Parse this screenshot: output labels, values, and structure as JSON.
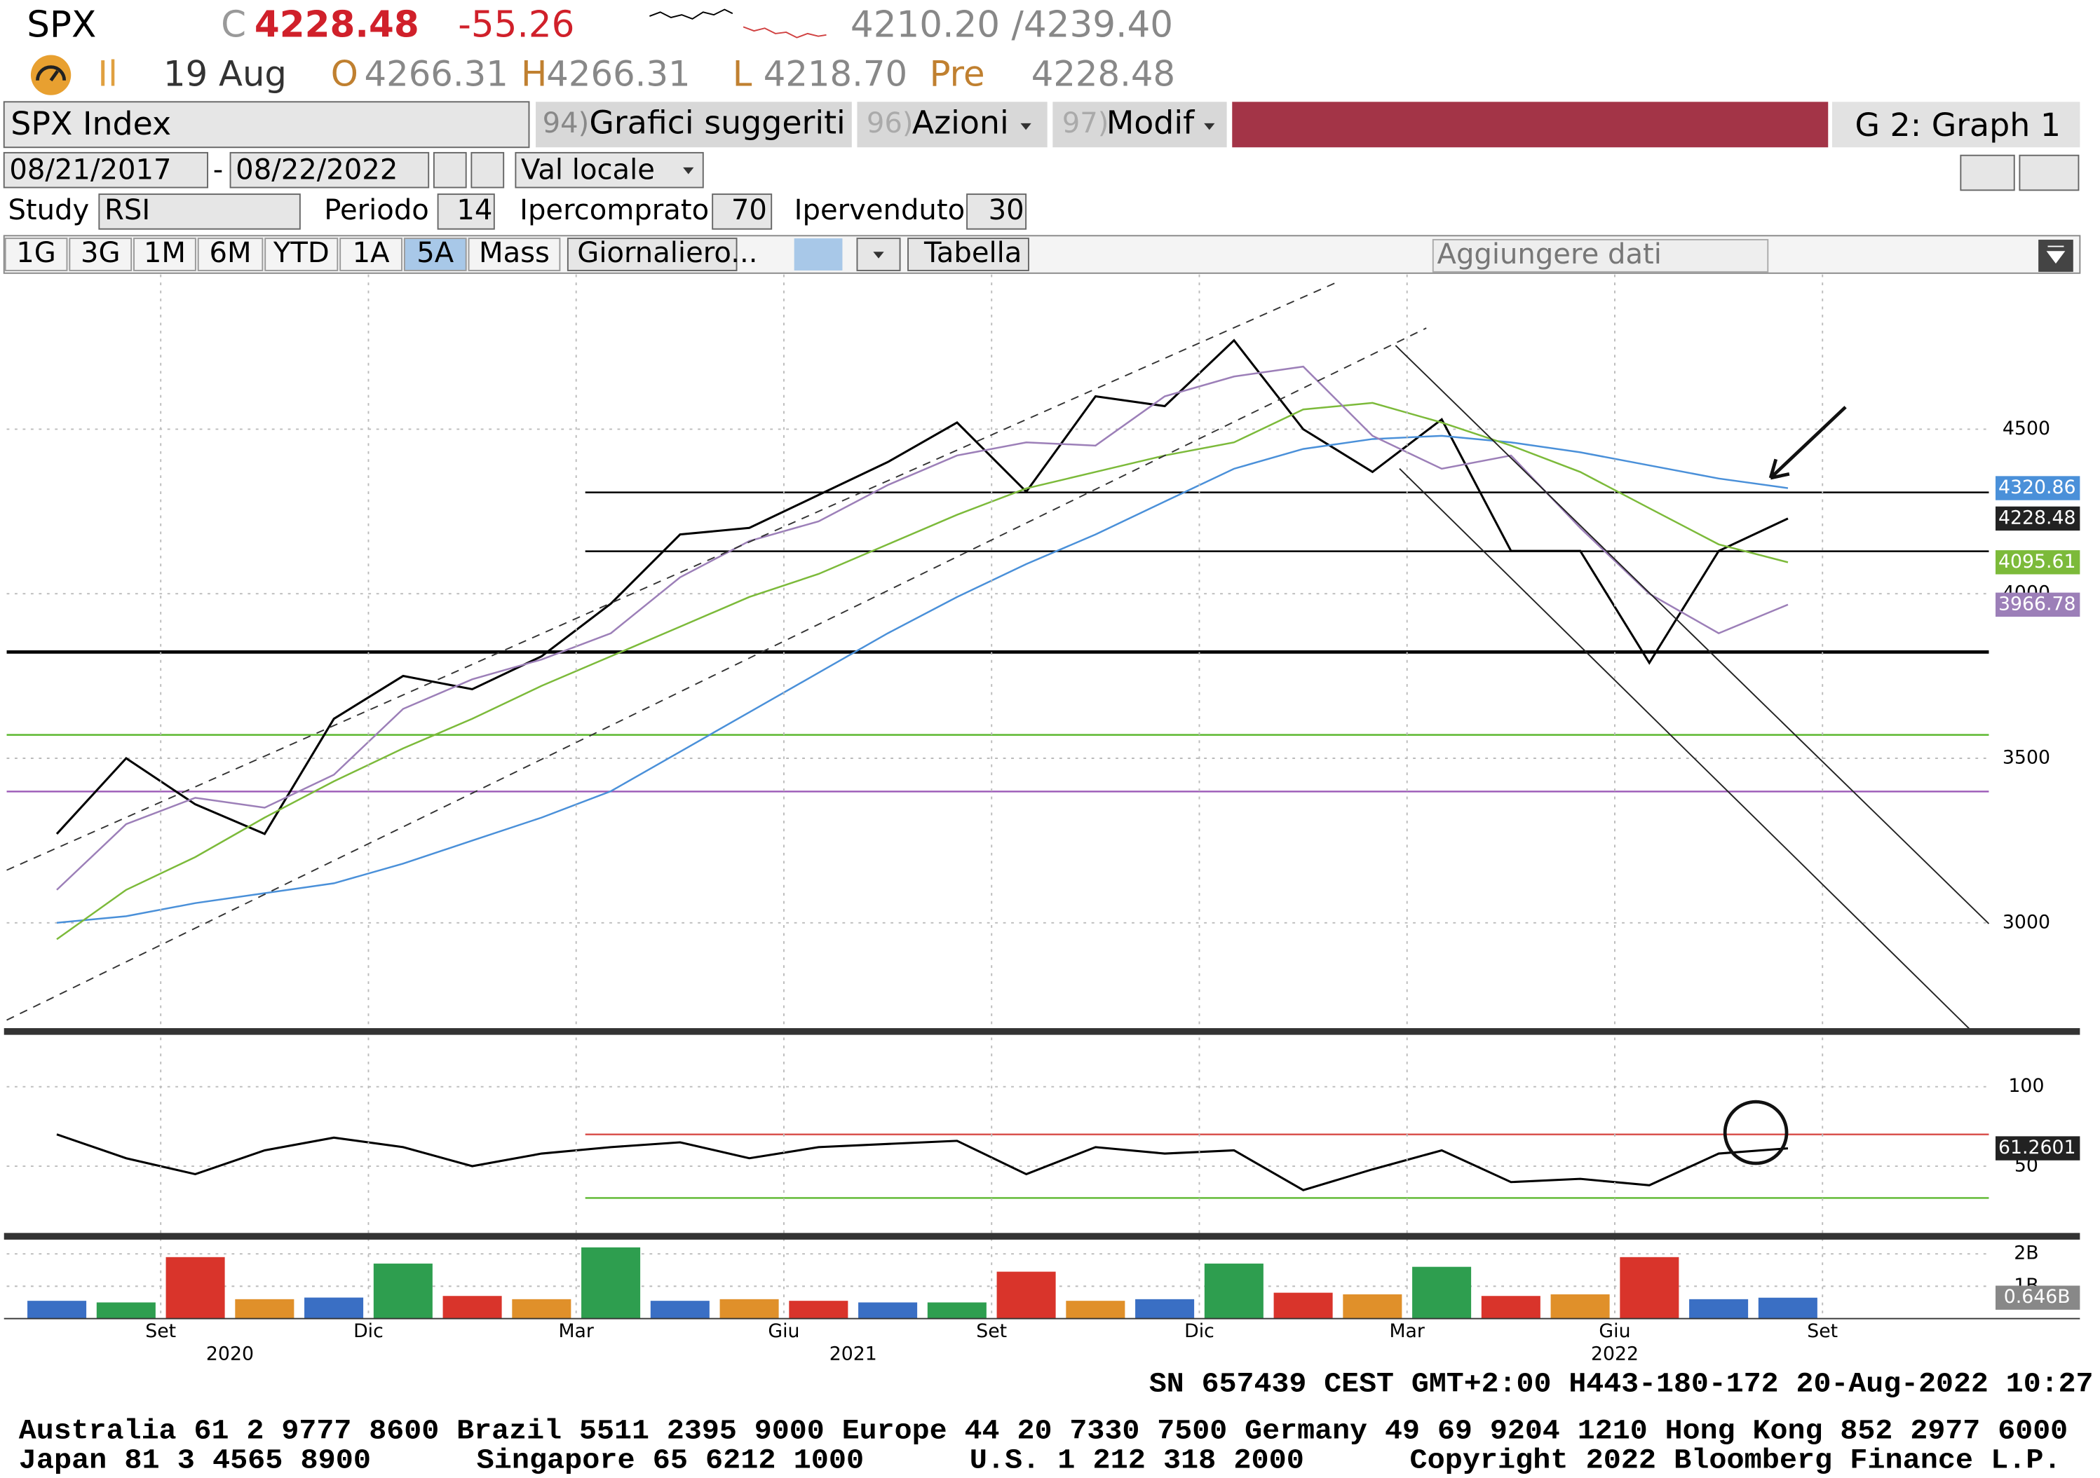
{
  "header": {
    "symbol": "SPX",
    "close_prefix": "C",
    "last": "4228.48",
    "change": "-55.26",
    "bid_ask": "4210.20 /4239.40",
    "session": "Il",
    "date": "19 Aug",
    "open_label": "O",
    "open": "4266.31",
    "high_label": "H",
    "high": "4266.31",
    "low_label": "L",
    "low": "4218.70",
    "pre_label": "Pre",
    "pre": "4228.48"
  },
  "toolbar": {
    "security": "SPX Index",
    "menu1_num": "94)",
    "menu1": "Grafici suggeriti",
    "menu2_num": "96)",
    "menu2": "Azioni",
    "menu3_num": "97)",
    "menu3": "Modif",
    "graph": "G 2: Graph 1",
    "date_from": "08/21/2017",
    "date_sep": "-",
    "date_to": "08/22/2022",
    "currency": "Val locale",
    "study_label": "Study",
    "study": "RSI",
    "period_label": "Periodo",
    "period": "14",
    "overbought_label": "Ipercomprato",
    "overbought": "70",
    "oversold_label": "Ipervenduto",
    "oversold": "30",
    "ranges": [
      "1G",
      "3G",
      "1M",
      "6M",
      "YTD",
      "1A",
      "5A",
      "Mass"
    ],
    "frequency": "Giornaliero...",
    "table": "Tabella",
    "add_data": "Aggiungere dati"
  },
  "chart_data": [
    {
      "type": "line",
      "x": [
        "2020-07",
        "2020-08",
        "2020-09",
        "2020-10",
        "2020-11",
        "2020-12",
        "2021-01",
        "2021-02",
        "2021-03",
        "2021-04",
        "2021-05",
        "2021-06",
        "2021-07",
        "2021-08",
        "2021-09",
        "2021-10",
        "2021-11",
        "2021-12",
        "2022-01",
        "2022-02",
        "2022-03",
        "2022-04",
        "2022-05",
        "2022-06",
        "2022-07",
        "2022-08"
      ],
      "series": [
        {
          "color": "#000000",
          "values": [
            3270,
            3500,
            3360,
            3270,
            3620,
            3750,
            3710,
            3810,
            3970,
            4180,
            4200,
            4300,
            4400,
            4520,
            4310,
            4600,
            4570,
            4770,
            4500,
            4370,
            4530,
            4130,
            4130,
            3790,
            4130,
            4228.48
          ]
        },
        {
          "color": "#4a90d9",
          "values": [
            3000,
            3020,
            3060,
            3090,
            3120,
            3180,
            3250,
            3320,
            3400,
            3520,
            3640,
            3760,
            3880,
            3990,
            4090,
            4180,
            4280,
            4380,
            4440,
            4470,
            4480,
            4460,
            4430,
            4390,
            4350,
            4320.86
          ]
        },
        {
          "color": "#7cba3a",
          "values": [
            2950,
            3100,
            3200,
            3320,
            3430,
            3530,
            3620,
            3720,
            3810,
            3900,
            3990,
            4060,
            4150,
            4240,
            4320,
            4370,
            4420,
            4460,
            4560,
            4580,
            4520,
            4450,
            4370,
            4260,
            4150,
            4095.61
          ]
        },
        {
          "color": "#9c7fb8",
          "values": [
            3100,
            3300,
            3380,
            3350,
            3450,
            3650,
            3740,
            3800,
            3880,
            4050,
            4160,
            4220,
            4330,
            4420,
            4460,
            4450,
            4600,
            4660,
            4690,
            4480,
            4380,
            4420,
            4200,
            4000,
            3880,
            3966.78
          ]
        }
      ],
      "ylim": [
        2680,
        4970
      ],
      "yticks": [
        3000,
        3500,
        4000,
        4500
      ],
      "grid": true,
      "levels": [
        {
          "value": 4308,
          "color": "#000000"
        },
        {
          "value": 4129,
          "color": "#000000"
        },
        {
          "value": 3823,
          "color": "#000000"
        },
        {
          "value": 3571,
          "color": "#5cb82e"
        },
        {
          "value": 3399,
          "color": "#9b59b6"
        }
      ]
    },
    {
      "type": "line",
      "x": [
        "2020-07",
        "2020-08",
        "2020-09",
        "2020-10",
        "2020-11",
        "2020-12",
        "2021-01",
        "2021-02",
        "2021-03",
        "2021-04",
        "2021-05",
        "2021-06",
        "2021-07",
        "2021-08",
        "2021-09",
        "2021-10",
        "2021-11",
        "2021-12",
        "2022-01",
        "2022-02",
        "2022-03",
        "2022-04",
        "2022-05",
        "2022-06",
        "2022-07",
        "2022-08"
      ],
      "series": [
        {
          "color": "#000000",
          "values": [
            70,
            55,
            45,
            60,
            68,
            62,
            50,
            58,
            62,
            65,
            55,
            62,
            64,
            66,
            45,
            62,
            58,
            60,
            35,
            48,
            60,
            40,
            42,
            38,
            58,
            61.2601
          ]
        }
      ],
      "ylim": [
        8,
        131
      ],
      "yticks": [
        50,
        100
      ],
      "grid": true,
      "levels": [
        {
          "value": 70,
          "color": "#d9534f"
        },
        {
          "value": 30,
          "color": "#5cb82e"
        }
      ]
    },
    {
      "type": "bar",
      "x": [
        "2020-07",
        "2020-08",
        "2020-09",
        "2020-10",
        "2020-11",
        "2020-12",
        "2021-01",
        "2021-02",
        "2021-03",
        "2021-04",
        "2021-05",
        "2021-06",
        "2021-07",
        "2021-08",
        "2021-09",
        "2021-10",
        "2021-11",
        "2021-12",
        "2022-01",
        "2022-02",
        "2022-03",
        "2022-04",
        "2022-05",
        "2022-06",
        "2022-07",
        "2022-08"
      ],
      "values": [
        0.55,
        0.5,
        1.9,
        0.6,
        0.65,
        1.7,
        0.7,
        0.6,
        2.2,
        0.55,
        0.6,
        0.55,
        0.5,
        0.5,
        1.45,
        0.55,
        0.6,
        1.7,
        0.8,
        0.75,
        1.6,
        0.7,
        0.75,
        1.9,
        0.6,
        0.646
      ],
      "value_labels": [
        null,
        null,
        null,
        null,
        null,
        null,
        null,
        null,
        null,
        null,
        null,
        null,
        null,
        null,
        null,
        null,
        null,
        null,
        null,
        null,
        null,
        null,
        null,
        null,
        null,
        "0.646B"
      ],
      "colors": [
        "#3a6fc4",
        "#2e9e4f",
        "#d9342b",
        "#e0902a",
        "#3a6fc4",
        "#2e9e4f",
        "#d9342b",
        "#e0902a",
        "#2e9e4f",
        "#3a6fc4",
        "#e0902a",
        "#d9342b",
        "#3a6fc4",
        "#2e9e4f",
        "#d9342b",
        "#e0902a",
        "#3a6fc4",
        "#2e9e4f",
        "#d9342b",
        "#e0902a",
        "#2e9e4f",
        "#d9342b",
        "#e0902a",
        "#d9342b",
        "#3a6fc4",
        "#3a6fc4"
      ],
      "ylim": [
        0,
        2.44
      ],
      "yticks": [
        {
          "value": 2,
          "label": "2B"
        },
        {
          "value": 1,
          "label": "1B"
        }
      ],
      "grid": true,
      "xticks": [
        {
          "value": "2020-09",
          "label": "Set"
        },
        {
          "value": "2020-12",
          "label": "Dic"
        },
        {
          "value": "2021-03",
          "label": "Mar"
        },
        {
          "value": "2021-06",
          "label": "Giu"
        },
        {
          "value": "2021-09",
          "label": "Set"
        },
        {
          "value": "2021-12",
          "label": "Dic"
        },
        {
          "value": "2022-03",
          "label": "Mar"
        },
        {
          "value": "2022-06",
          "label": "Giu"
        },
        {
          "value": "2022-09",
          "label": "Set"
        }
      ],
      "year_ticks": [
        {
          "value": "2020-10",
          "label": "2020"
        },
        {
          "value": "2021-07",
          "label": "2021"
        },
        {
          "value": "2022-06",
          "label": "2022"
        }
      ]
    }
  ],
  "footer": {
    "session": "SN 657439 CEST GMT+2:00 H443-180-172 20-Aug-2022 10:27",
    "contacts": "Australia 61 2 9777 8600 Brazil 5511 2395 9000 Europe 44 20 7330 7500 Germany 49 69 9204 1210 Hong Kong 852 2977 6000",
    "contacts2": "Japan 81 3 4565 8900      Singapore 65 6212 1000      U.S. 1 212 318 2000      Copyright 2022 Bloomberg Finance L.P."
  }
}
